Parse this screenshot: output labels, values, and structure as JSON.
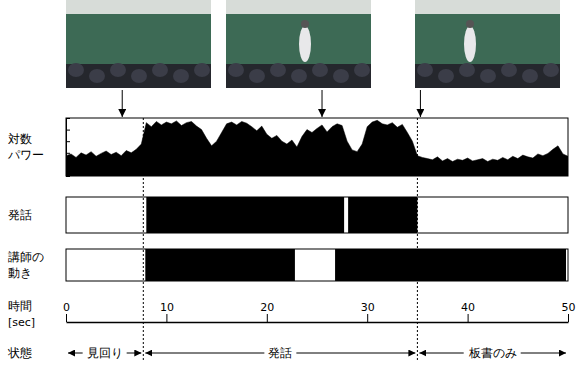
{
  "chart_data": {
    "type": "timeline",
    "x_label": "時間\n[sec]",
    "xlim": [
      0,
      50
    ],
    "xticks": [
      0,
      10,
      20,
      30,
      40,
      50
    ],
    "ylim": [
      0,
      10
    ],
    "yticks": [
      0,
      2,
      4,
      6,
      8,
      10
    ],
    "tick_labels": "x",
    "series": [
      {
        "name": "対数\nパワー",
        "type": "area",
        "color": "#000000",
        "x": [
          0,
          0.5,
          1,
          1.5,
          2,
          2.5,
          3,
          3.5,
          4,
          4.5,
          5,
          5.5,
          6,
          6.5,
          7,
          7.5,
          8,
          8.5,
          9,
          9.5,
          10,
          10.5,
          11,
          11.5,
          12,
          12.5,
          13,
          13.5,
          14,
          14.5,
          15,
          15.5,
          16,
          16.5,
          17,
          17.5,
          18,
          18.5,
          19,
          19.5,
          20,
          20.5,
          21,
          21.5,
          22,
          22.5,
          23,
          23.5,
          24,
          24.5,
          25,
          25.5,
          26,
          26.5,
          27,
          27.5,
          28,
          28.5,
          29,
          29.5,
          30,
          30.5,
          31,
          31.5,
          32,
          32.5,
          33,
          33.5,
          34,
          34.5,
          35,
          35.5,
          36,
          36.5,
          37,
          37.5,
          38,
          38.5,
          39,
          39.5,
          40,
          40.5,
          41,
          41.5,
          42,
          42.5,
          43,
          43.5,
          44,
          44.5,
          45,
          45.5,
          46,
          46.5,
          47,
          47.5,
          48,
          48.5,
          49,
          49.5,
          50
        ],
        "values": [
          3.5,
          3.8,
          3.2,
          4.0,
          3.6,
          4.2,
          3.4,
          3.9,
          4.3,
          3.7,
          4.1,
          3.5,
          4.4,
          4.0,
          4.6,
          5.5,
          9.2,
          8.5,
          9.4,
          8.8,
          9.3,
          9.0,
          9.5,
          8.7,
          9.2,
          9.4,
          8.6,
          8.0,
          6.5,
          5.2,
          6.0,
          7.5,
          9.0,
          9.3,
          8.8,
          9.4,
          9.1,
          8.5,
          7.8,
          8.6,
          7.2,
          6.5,
          7.0,
          6.0,
          5.5,
          6.2,
          5.0,
          6.8,
          8.0,
          7.5,
          8.2,
          8.8,
          7.6,
          8.5,
          9.0,
          8.7,
          6.0,
          4.5,
          4.2,
          5.5,
          8.5,
          9.3,
          9.6,
          9.0,
          8.8,
          9.2,
          8.4,
          8.9,
          7.5,
          6.0,
          3.5,
          3.2,
          3.0,
          2.8,
          3.3,
          2.6,
          3.0,
          2.5,
          2.9,
          2.7,
          3.1,
          2.6,
          2.8,
          3.0,
          2.5,
          2.9,
          2.7,
          3.2,
          2.8,
          3.4,
          3.0,
          3.6,
          3.3,
          3.1,
          3.8,
          3.5,
          3.9,
          4.6,
          5.2,
          3.8,
          3.4
        ]
      },
      {
        "name": "発話",
        "type": "interval",
        "color": "#000000",
        "starts": [
          8.0,
          28.1
        ],
        "ends": [
          27.7,
          35.0
        ]
      },
      {
        "name": "講師の\n動き",
        "type": "interval",
        "color": "#000000",
        "starts": [
          7.9,
          26.8
        ],
        "ends": [
          22.8,
          49.8
        ]
      }
    ],
    "frames": [
      5.6,
      25.5,
      35.3
    ],
    "state_label": "状態",
    "states": [
      {
        "label": "見回り",
        "start": 0,
        "end": 7.7
      },
      {
        "label": "発話",
        "start": 7.7,
        "end": 35.0
      },
      {
        "label": "板書のみ",
        "start": 35.0,
        "end": 50
      }
    ]
  }
}
